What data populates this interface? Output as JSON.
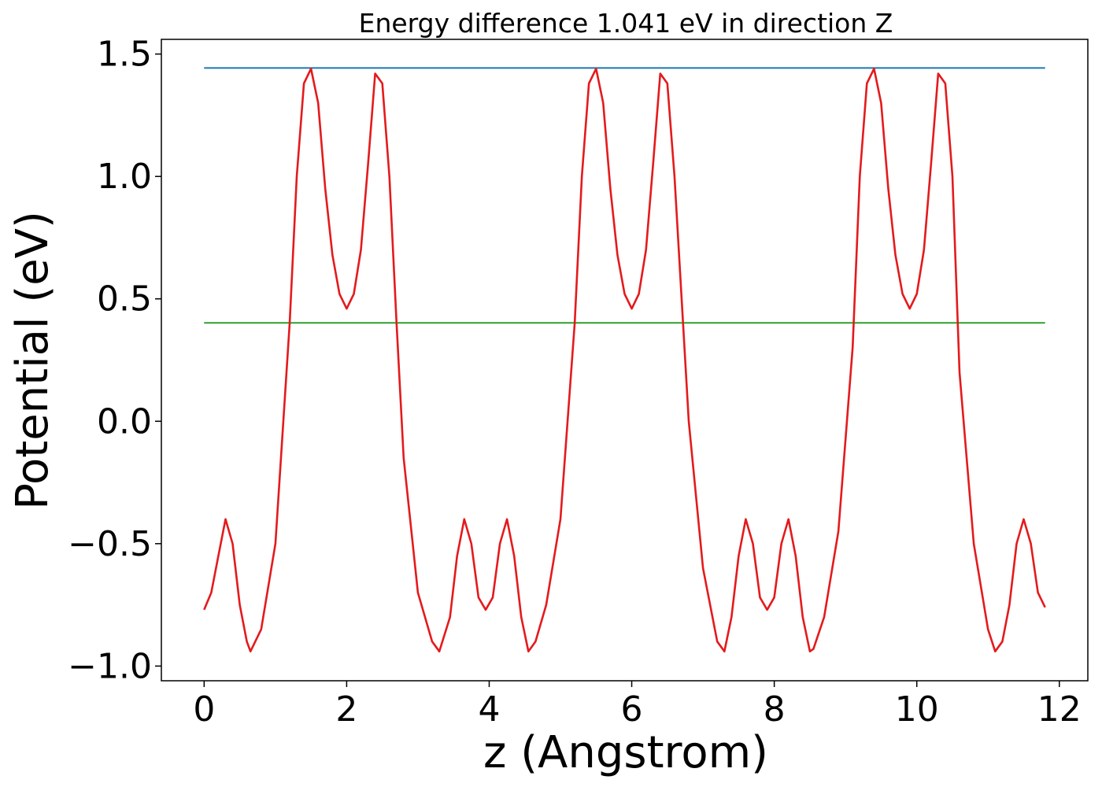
{
  "chart_data": {
    "type": "line",
    "title": "Energy difference 1.041 eV in direction Z",
    "xlabel": "z (Angstrom)",
    "ylabel": "Potential (eV)",
    "xlim": [
      -0.6,
      12.4
    ],
    "ylim": [
      -1.06,
      1.56
    ],
    "xticks": [
      0,
      2,
      4,
      6,
      8,
      10,
      12
    ],
    "xtick_labels": [
      "0",
      "2",
      "4",
      "6",
      "8",
      "10",
      "12"
    ],
    "yticks": [
      -1.0,
      -0.5,
      0.0,
      0.5,
      1.0,
      1.5
    ],
    "ytick_labels": [
      "−1.0",
      "−0.5",
      "0.0",
      "0.5",
      "1.0",
      "1.5"
    ],
    "grid": false,
    "series": [
      {
        "color": "#1f77b4",
        "x": [
          0,
          11.8
        ],
        "y": [
          1.443,
          1.443
        ]
      },
      {
        "color": "#2ca02c",
        "x": [
          0,
          11.8
        ],
        "y": [
          0.402,
          0.402
        ]
      },
      {
        "color": "#e41a1c",
        "x": [
          0.0,
          0.1,
          0.2,
          0.3,
          0.4,
          0.5,
          0.6,
          0.65,
          0.8,
          1.0,
          1.2,
          1.3,
          1.4,
          1.5,
          1.6,
          1.7,
          1.8,
          1.9,
          2.0,
          2.1,
          2.2,
          2.3,
          2.4,
          2.5,
          2.6,
          2.7,
          2.8,
          3.0,
          3.2,
          3.3,
          3.45,
          3.55,
          3.65,
          3.75,
          3.85,
          3.95,
          4.05,
          4.15,
          4.25,
          4.35,
          4.45,
          4.55,
          4.65,
          4.8,
          5.0,
          5.2,
          5.3,
          5.4,
          5.5,
          5.6,
          5.7,
          5.8,
          5.9,
          6.0,
          6.1,
          6.2,
          6.3,
          6.4,
          6.5,
          6.6,
          6.8,
          7.0,
          7.2,
          7.3,
          7.4,
          7.5,
          7.6,
          7.7,
          7.8,
          7.9,
          8.0,
          8.1,
          8.2,
          8.3,
          8.4,
          8.5,
          8.55,
          8.7,
          8.9,
          9.1,
          9.2,
          9.3,
          9.4,
          9.5,
          9.6,
          9.7,
          9.8,
          9.9,
          10.0,
          10.1,
          10.2,
          10.3,
          10.4,
          10.5,
          10.6,
          10.8,
          11.0,
          11.1,
          11.2,
          11.3,
          11.4,
          11.5,
          11.6,
          11.7,
          11.8
        ],
        "y": [
          -0.77,
          -0.7,
          -0.55,
          -0.4,
          -0.5,
          -0.75,
          -0.9,
          -0.94,
          -0.85,
          -0.5,
          0.4,
          1.0,
          1.38,
          1.44,
          1.3,
          0.95,
          0.68,
          0.52,
          0.46,
          0.52,
          0.7,
          1.05,
          1.42,
          1.38,
          1.0,
          0.4,
          -0.15,
          -0.7,
          -0.9,
          -0.94,
          -0.8,
          -0.55,
          -0.4,
          -0.5,
          -0.72,
          -0.77,
          -0.72,
          -0.5,
          -0.4,
          -0.55,
          -0.8,
          -0.94,
          -0.9,
          -0.75,
          -0.4,
          0.4,
          1.0,
          1.38,
          1.44,
          1.3,
          0.95,
          0.68,
          0.52,
          0.46,
          0.52,
          0.7,
          1.05,
          1.42,
          1.38,
          1.0,
          0.0,
          -0.6,
          -0.9,
          -0.94,
          -0.8,
          -0.55,
          -0.4,
          -0.5,
          -0.72,
          -0.77,
          -0.72,
          -0.5,
          -0.4,
          -0.55,
          -0.8,
          -0.94,
          -0.93,
          -0.8,
          -0.45,
          0.3,
          1.0,
          1.38,
          1.44,
          1.3,
          0.95,
          0.68,
          0.52,
          0.46,
          0.52,
          0.7,
          1.05,
          1.42,
          1.38,
          1.0,
          0.2,
          -0.5,
          -0.85,
          -0.94,
          -0.9,
          -0.75,
          -0.5,
          -0.4,
          -0.5,
          -0.7,
          -0.76
        ]
      }
    ]
  }
}
